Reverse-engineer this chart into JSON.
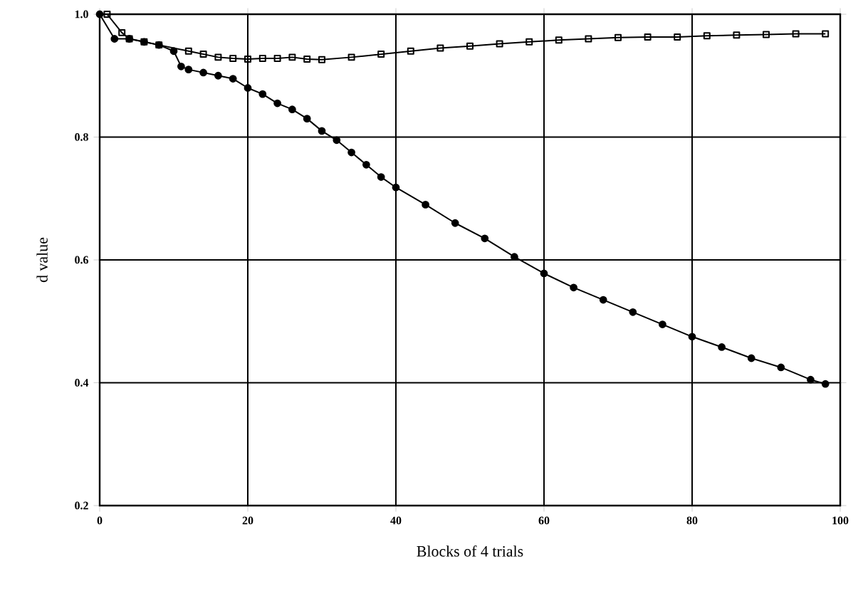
{
  "chart_data": {
    "type": "line",
    "xlabel": "Blocks of 4 trials",
    "ylabel": "d value",
    "xlim": [
      0,
      100
    ],
    "xticks": [
      0,
      20,
      40,
      60,
      80,
      100
    ],
    "ylim": [
      0.2,
      1.0
    ],
    "yticks": [
      {
        "value": 0.2,
        "label": "0.2"
      },
      {
        "value": 0.4,
        "label": "0.4"
      },
      {
        "value": 0.6,
        "label": "0.6"
      },
      {
        "value": 0.8,
        "label": "0.8"
      },
      {
        "value": 1.0,
        "label": "1.0"
      }
    ],
    "grid": true,
    "series": [
      {
        "color": "#000000",
        "marker": "square",
        "x": [
          1,
          3,
          4,
          6,
          8,
          12,
          14,
          16,
          18,
          20,
          22,
          24,
          26,
          28,
          30,
          34,
          38,
          42,
          46,
          50,
          54,
          58,
          62,
          66,
          70,
          74,
          78,
          82,
          86,
          90,
          94,
          98
        ],
        "values": [
          1.0,
          0.97,
          0.96,
          0.955,
          0.95,
          0.94,
          0.935,
          0.93,
          0.928,
          0.927,
          0.928,
          0.928,
          0.93,
          0.927,
          0.926,
          0.93,
          0.935,
          0.94,
          0.945,
          0.948,
          0.952,
          0.955,
          0.958,
          0.96,
          0.962,
          0.963,
          0.963,
          0.965,
          0.966,
          0.967,
          0.968,
          0.968
        ]
      },
      {
        "color": "#000000",
        "marker": "circle",
        "x": [
          0,
          2,
          4,
          6,
          8,
          10,
          11,
          12,
          14,
          16,
          18,
          20,
          22,
          24,
          26,
          28,
          30,
          32,
          34,
          36,
          38,
          40,
          44,
          48,
          52,
          56,
          60,
          64,
          68,
          72,
          76,
          80,
          84,
          88,
          92,
          96,
          98
        ],
        "values": [
          1.0,
          0.96,
          0.96,
          0.955,
          0.95,
          0.94,
          0.915,
          0.91,
          0.905,
          0.9,
          0.895,
          0.88,
          0.87,
          0.855,
          0.845,
          0.83,
          0.81,
          0.795,
          0.775,
          0.755,
          0.735,
          0.718,
          0.69,
          0.66,
          0.635,
          0.605,
          0.578,
          0.555,
          0.535,
          0.515,
          0.495,
          0.475,
          0.458,
          0.44,
          0.425,
          0.405,
          0.398
        ]
      }
    ]
  }
}
